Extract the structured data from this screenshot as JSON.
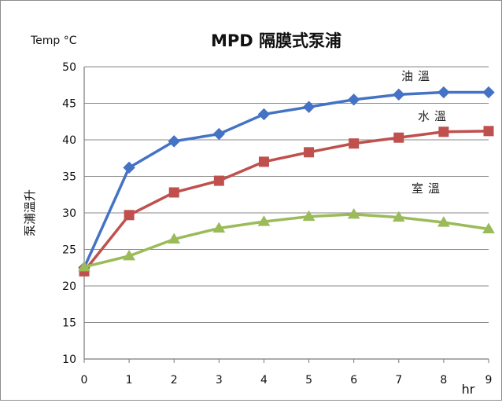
{
  "chart_data": {
    "type": "line",
    "title": "MPD 隔膜式泵浦",
    "ylabel": "泵浦溫升",
    "y_unit_label": "Temp °C",
    "xlabel": "hr",
    "x": [
      0,
      1,
      2,
      3,
      4,
      5,
      6,
      7,
      8,
      9
    ],
    "ylim": [
      10,
      50
    ],
    "xlim": [
      0,
      9
    ],
    "y_ticks": [
      10,
      15,
      20,
      25,
      30,
      35,
      40,
      45,
      50
    ],
    "grid": true,
    "legend": "none",
    "series": [
      {
        "name": "油溫",
        "color": "#4472c4",
        "marker": "diamond",
        "values": [
          22.5,
          36.2,
          39.8,
          40.8,
          43.5,
          44.5,
          45.5,
          46.2,
          46.5,
          46.5
        ]
      },
      {
        "name": "水溫",
        "color": "#c0504d",
        "marker": "square",
        "values": [
          22.0,
          29.7,
          32.8,
          34.4,
          37.0,
          38.3,
          39.5,
          40.3,
          41.1,
          41.2
        ]
      },
      {
        "name": "室溫",
        "color": "#9bbb59",
        "marker": "triangle",
        "values": [
          22.6,
          24.1,
          26.4,
          27.9,
          28.8,
          29.5,
          29.8,
          29.4,
          28.7,
          27.8
        ]
      }
    ]
  }
}
